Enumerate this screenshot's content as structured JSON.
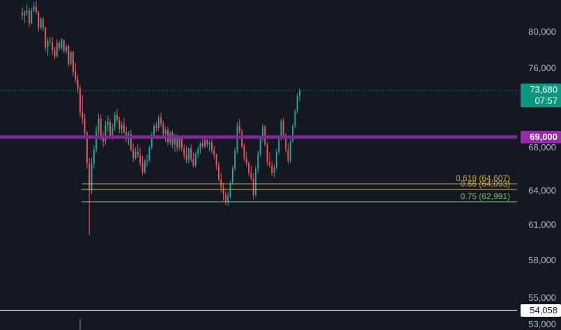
{
  "chart_data": {
    "type": "candlestick",
    "y_axis": {
      "scale": "log",
      "ylim": [
        53000,
        82800
      ],
      "tick_labels": [
        "80,000",
        "76,000",
        "68,000",
        "64,000",
        "61,000",
        "58,000",
        "55,000",
        "53,000"
      ],
      "tick_values": [
        80000,
        76000,
        68000,
        64000,
        61000,
        58000,
        55000,
        53000
      ]
    },
    "current_price": {
      "label": "73,680",
      "countdown": "07:57",
      "value": 73680,
      "color": "#089981"
    },
    "horizontal_levels": [
      {
        "label": "69,000",
        "value": 69000,
        "color": "#7b2a95",
        "box_color": "#9c27b0"
      },
      {
        "label": "54,058",
        "value": 54058,
        "color": "#d1d4dc",
        "box_color": "#ffffff"
      }
    ],
    "fib_levels": [
      {
        "label": "0.618 (64,607)",
        "value": 64607,
        "color": "#c6a73d"
      },
      {
        "label": "0.66 (64,093)",
        "value": 64093,
        "color": "#c6a73d"
      },
      {
        "label": "0.75 (62,991)",
        "value": 62991,
        "color": "#7cc36b"
      }
    ],
    "candles_ohlc": [
      [
        82200,
        82900,
        81400,
        81900
      ],
      [
        81900,
        82500,
        81000,
        82200
      ],
      [
        82200,
        83200,
        81800,
        82400
      ],
      [
        82400,
        82800,
        80600,
        81000
      ],
      [
        81000,
        82800,
        80900,
        82500
      ],
      [
        82500,
        83400,
        82300,
        82900
      ],
      [
        82900,
        83600,
        82000,
        82300
      ],
      [
        82300,
        82400,
        80100,
        80500
      ],
      [
        80500,
        81700,
        80300,
        81500
      ],
      [
        81500,
        81700,
        80100,
        80500
      ],
      [
        80500,
        80600,
        77800,
        78300
      ],
      [
        78300,
        79300,
        77400,
        79000
      ],
      [
        79000,
        79500,
        78500,
        78900
      ],
      [
        78900,
        79400,
        77500,
        78000
      ],
      [
        78000,
        78400,
        77000,
        77300
      ],
      [
        77300,
        79200,
        77200,
        78800
      ],
      [
        78800,
        79000,
        77900,
        78200
      ],
      [
        78200,
        79300,
        78000,
        79100
      ],
      [
        79100,
        79200,
        77700,
        77900
      ],
      [
        77900,
        78600,
        77600,
        78400
      ],
      [
        78400,
        78600,
        76200,
        76500
      ],
      [
        76500,
        77900,
        76300,
        77800
      ],
      [
        77800,
        77900,
        75200,
        75700
      ],
      [
        75700,
        76600,
        74500,
        74800
      ],
      [
        74800,
        75300,
        73400,
        73900
      ],
      [
        73900,
        74200,
        71000,
        71500
      ],
      [
        71500,
        73200,
        70300,
        70800
      ],
      [
        70800,
        71300,
        68900,
        69400
      ],
      [
        69400,
        69600,
        66000,
        66500
      ],
      [
        66500,
        67000,
        60100,
        64000
      ],
      [
        64000,
        67000,
        63700,
        66500
      ],
      [
        66500,
        68200,
        66000,
        67800
      ],
      [
        67800,
        70100,
        67500,
        69600
      ],
      [
        69600,
        71300,
        68900,
        70800
      ],
      [
        70800,
        71200,
        68700,
        69100
      ],
      [
        69100,
        69500,
        68000,
        68600
      ],
      [
        68600,
        70600,
        68200,
        70200
      ],
      [
        70200,
        71100,
        69500,
        70500
      ],
      [
        70500,
        70800,
        68800,
        69100
      ],
      [
        69100,
        70300,
        68700,
        70000
      ],
      [
        70000,
        71500,
        69600,
        71200
      ],
      [
        71200,
        71800,
        70400,
        70700
      ],
      [
        70700,
        71000,
        69400,
        69800
      ],
      [
        69800,
        70500,
        69300,
        70200
      ],
      [
        70200,
        70900,
        69300,
        69500
      ],
      [
        69500,
        70000,
        68500,
        68800
      ],
      [
        68800,
        69600,
        68200,
        69300
      ],
      [
        69300,
        69700,
        67600,
        67800
      ],
      [
        67800,
        68400,
        66600,
        67000
      ],
      [
        67000,
        68000,
        66800,
        67600
      ],
      [
        67600,
        68300,
        67000,
        67300
      ],
      [
        67300,
        68000,
        66200,
        66500
      ],
      [
        66500,
        67200,
        65400,
        65700
      ],
      [
        65700,
        66900,
        65500,
        66700
      ],
      [
        66700,
        67300,
        66200,
        66800
      ],
      [
        66800,
        68200,
        66600,
        68000
      ],
      [
        68000,
        69500,
        67800,
        69200
      ],
      [
        69200,
        70300,
        68800,
        70100
      ],
      [
        70100,
        70500,
        69500,
        69900
      ],
      [
        69900,
        71200,
        69600,
        70900
      ],
      [
        70900,
        71400,
        70000,
        70300
      ],
      [
        70300,
        70600,
        69000,
        69300
      ],
      [
        69300,
        70000,
        68500,
        69700
      ],
      [
        69700,
        70000,
        68200,
        68500
      ],
      [
        68500,
        69600,
        68200,
        69400
      ],
      [
        69400,
        69700,
        67900,
        68300
      ],
      [
        68300,
        69300,
        67600,
        69100
      ],
      [
        69100,
        69300,
        67600,
        68000
      ],
      [
        68000,
        69100,
        67700,
        68900
      ],
      [
        68900,
        69200,
        67600,
        67900
      ],
      [
        67900,
        68300,
        66900,
        67300
      ],
      [
        67300,
        68100,
        66500,
        66800
      ],
      [
        66800,
        68000,
        66500,
        67900
      ],
      [
        67900,
        68300,
        66600,
        66900
      ],
      [
        66900,
        67500,
        66100,
        66300
      ],
      [
        66300,
        67600,
        66100,
        67400
      ],
      [
        67400,
        68100,
        67000,
        67800
      ],
      [
        67800,
        68600,
        67400,
        68400
      ],
      [
        68400,
        68800,
        67900,
        68100
      ],
      [
        68100,
        68900,
        67900,
        68700
      ],
      [
        68700,
        69000,
        68000,
        68300
      ],
      [
        68300,
        68700,
        67600,
        68500
      ],
      [
        68500,
        68900,
        67400,
        67700
      ],
      [
        67700,
        68100,
        66900,
        67300
      ],
      [
        67300,
        67400,
        65900,
        66300
      ],
      [
        66300,
        66600,
        64800,
        65000
      ],
      [
        65000,
        65600,
        63800,
        64300
      ],
      [
        64300,
        64700,
        63100,
        63700
      ],
      [
        63700,
        63900,
        62700,
        63000
      ],
      [
        63000,
        63900,
        62600,
        63500
      ],
      [
        63500,
        64900,
        63300,
        64700
      ],
      [
        64700,
        66300,
        64500,
        66000
      ],
      [
        66000,
        68000,
        65800,
        67700
      ],
      [
        67700,
        70500,
        67400,
        70100
      ],
      [
        70100,
        70800,
        69300,
        69500
      ],
      [
        69500,
        69800,
        67900,
        68100
      ],
      [
        68100,
        68400,
        66700,
        67000
      ],
      [
        67000,
        67600,
        66200,
        66500
      ],
      [
        66500,
        66700,
        65300,
        65600
      ],
      [
        65600,
        66300,
        64900,
        65100
      ],
      [
        65100,
        65600,
        63200,
        63600
      ],
      [
        63600,
        66300,
        63400,
        66000
      ],
      [
        66000,
        67700,
        65600,
        67400
      ],
      [
        67400,
        69100,
        67100,
        68800
      ],
      [
        68800,
        70300,
        68500,
        70000
      ],
      [
        70000,
        70200,
        68100,
        68300
      ],
      [
        68300,
        68500,
        66300,
        66600
      ],
      [
        66600,
        67500,
        66100,
        66300
      ],
      [
        66300,
        66700,
        65300,
        65600
      ],
      [
        65600,
        66400,
        65100,
        66100
      ],
      [
        66100,
        67900,
        65900,
        67600
      ],
      [
        67600,
        69200,
        67300,
        69000
      ],
      [
        69000,
        70800,
        68700,
        70600
      ],
      [
        70600,
        70900,
        69000,
        69200
      ],
      [
        69200,
        69400,
        67500,
        67800
      ],
      [
        67800,
        68400,
        66400,
        66700
      ],
      [
        66700,
        68800,
        66500,
        68600
      ],
      [
        68600,
        70300,
        68400,
        70100
      ],
      [
        70100,
        71800,
        69900,
        71600
      ],
      [
        71600,
        73400,
        71300,
        73100
      ],
      [
        73100,
        73900,
        72600,
        73680
      ]
    ]
  }
}
